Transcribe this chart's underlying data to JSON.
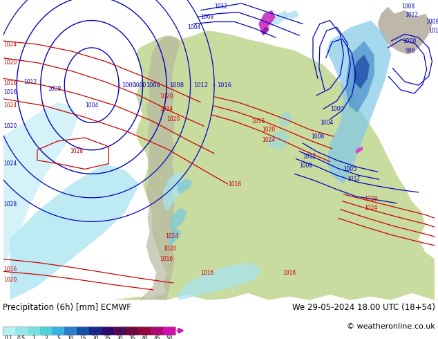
{
  "title_left": "Precipitation (6h) [mm] ECMWF",
  "title_right": "We 29-05-2024 18.00 UTC (18+54)",
  "copyright": "© weatheronline.co.uk",
  "colorbar_levels": [
    "0.1",
    "0.5",
    "1",
    "2",
    "5",
    "10",
    "15",
    "20",
    "25",
    "30",
    "35",
    "40",
    "45",
    "50"
  ],
  "colorbar_colors_hex": [
    "#b5f0f0",
    "#96e8e8",
    "#78e0e0",
    "#50d0d8",
    "#38b4e0",
    "#2880c8",
    "#1850a8",
    "#182888",
    "#300870",
    "#500858",
    "#700840",
    "#900838",
    "#b00870",
    "#d010b0"
  ],
  "ocean_color": "#d8eef8",
  "land_color": "#c8dca0",
  "mountain_color": "#b8b8a0",
  "font_color": "#000000",
  "background_color": "#ffffff",
  "slp_blue": "#0000bb",
  "slp_red": "#cc0000",
  "label_fs": 7,
  "title_fs": 8.5,
  "copy_fs": 8
}
